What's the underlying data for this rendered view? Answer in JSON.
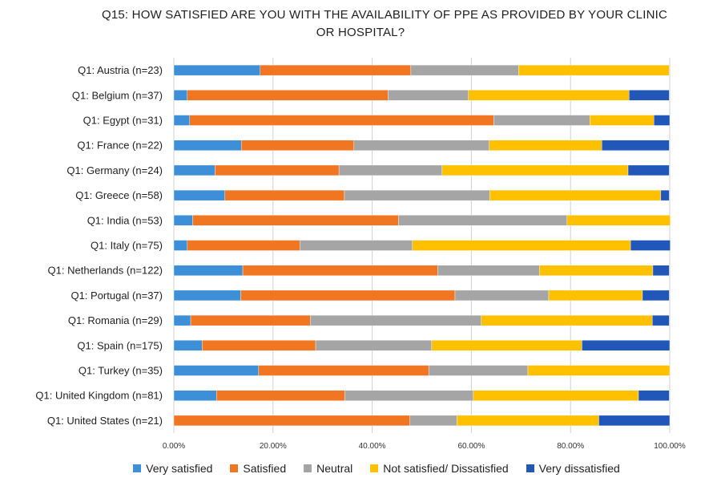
{
  "chart_data": {
    "type": "bar",
    "orientation": "horizontal",
    "stacked": true,
    "title_lines": [
      "Q15: HOW SATISFIED ARE YOU WITH THE AVAILABILITY OF PPE AS PROVIDED BY YOUR CLINIC",
      "OR HOSPITAL?"
    ],
    "categories": [
      "Q1: Austria (n=23)",
      "Q1: Belgium (n=37)",
      "Q1: Egypt (n=31)",
      "Q1: France (n=22)",
      "Q1: Germany (n=24)",
      "Q1: Greece (n=58)",
      "Q1: India (n=53)",
      "Q1: Italy (n=75)",
      "Q1: Netherlands (n=122)",
      "Q1: Portugal (n=37)",
      "Q1: Romania (n=29)",
      "Q1: Spain (n=175)",
      "Q1: Turkey (n=35)",
      "Q1: United Kingdom (n=81)",
      "Q1: United States (n=21)"
    ],
    "series": [
      {
        "name": "Very satisfied",
        "color": "#3d8fd8",
        "values": [
          17.4,
          2.7,
          3.2,
          13.6,
          8.3,
          10.3,
          3.8,
          2.7,
          13.9,
          13.5,
          3.4,
          5.7,
          17.1,
          8.6,
          0.0
        ]
      },
      {
        "name": "Satisfied",
        "color": "#f07622",
        "values": [
          30.4,
          40.5,
          61.3,
          22.7,
          25.0,
          24.1,
          41.5,
          22.7,
          39.3,
          43.2,
          24.1,
          22.9,
          34.3,
          25.9,
          47.6
        ]
      },
      {
        "name": "Neutral",
        "color": "#a5a5a5",
        "values": [
          21.7,
          16.2,
          19.4,
          27.3,
          20.8,
          29.3,
          34.0,
          22.7,
          20.5,
          18.9,
          34.5,
          23.4,
          20.0,
          25.9,
          9.5
        ]
      },
      {
        "name": "Not satisfied/ Dissatisfied",
        "color": "#ffc000",
        "values": [
          30.4,
          32.4,
          12.9,
          22.7,
          37.5,
          34.5,
          20.8,
          44.0,
          22.9,
          18.9,
          34.5,
          30.3,
          28.6,
          33.3,
          28.6
        ]
      },
      {
        "name": "Very dissatisfied",
        "color": "#2157b8",
        "values": [
          0.0,
          8.1,
          3.2,
          13.6,
          8.3,
          1.7,
          0.0,
          8.0,
          3.3,
          5.4,
          3.4,
          17.7,
          0.0,
          6.2,
          14.3
        ]
      }
    ],
    "x_ticks": [
      "0.00%",
      "20.00%",
      "40.00%",
      "60.00%",
      "80.00%",
      "100.00%"
    ],
    "xlim": [
      0,
      100
    ],
    "grid": true,
    "legend_position": "bottom"
  }
}
